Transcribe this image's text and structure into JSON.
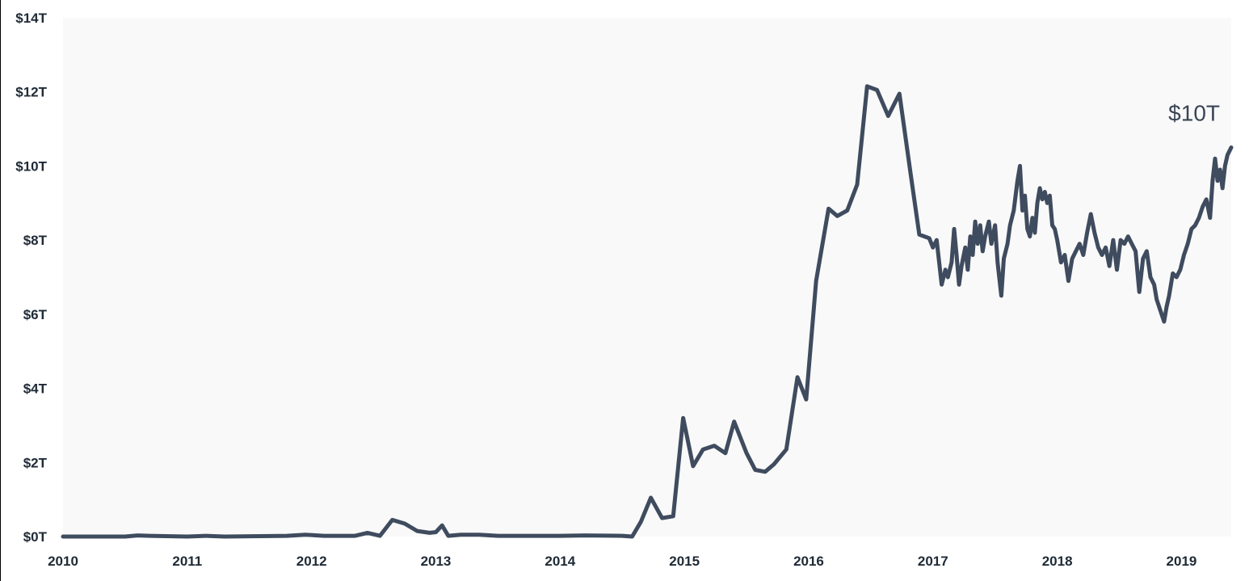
{
  "chart_data": {
    "type": "line",
    "title": "",
    "xlabel": "",
    "ylabel": "",
    "xlim": [
      2010.0,
      2019.4
    ],
    "ylim": [
      0,
      14
    ],
    "x_ticks": [
      2010,
      2011,
      2012,
      2013,
      2014,
      2015,
      2016,
      2017,
      2018,
      2019
    ],
    "x_tick_labels": [
      "2010",
      "2011",
      "2012",
      "2013",
      "2014",
      "2015",
      "2016",
      "2017",
      "2018",
      "2019"
    ],
    "y_ticks": [
      0,
      2,
      4,
      6,
      8,
      10,
      12,
      14
    ],
    "y_tick_labels": [
      "$0T",
      "$2T",
      "$4T",
      "$6T",
      "$8T",
      "$10T",
      "$12T",
      "$14T"
    ],
    "grid": false,
    "annotation": {
      "text": "$10T",
      "x": 2019.4,
      "y": 10.3
    },
    "line_color": "#3f4b5e",
    "plot_background": "#f9f9f9",
    "series": [
      {
        "values": [
          [
            2010.0,
            0.0
          ],
          [
            2010.5,
            0.0
          ],
          [
            2010.6,
            0.03
          ],
          [
            2010.7,
            0.02
          ],
          [
            2011.0,
            0.0
          ],
          [
            2011.15,
            0.02
          ],
          [
            2011.3,
            0.0
          ],
          [
            2011.8,
            0.02
          ],
          [
            2011.95,
            0.05
          ],
          [
            2012.1,
            0.02
          ],
          [
            2012.35,
            0.02
          ],
          [
            2012.45,
            0.1
          ],
          [
            2012.55,
            0.02
          ],
          [
            2012.65,
            0.45
          ],
          [
            2012.75,
            0.35
          ],
          [
            2012.85,
            0.15
          ],
          [
            2012.95,
            0.1
          ],
          [
            2013.0,
            0.12
          ],
          [
            2013.05,
            0.3
          ],
          [
            2013.1,
            0.02
          ],
          [
            2013.2,
            0.05
          ],
          [
            2013.35,
            0.05
          ],
          [
            2013.5,
            0.02
          ],
          [
            2014.0,
            0.02
          ],
          [
            2014.2,
            0.03
          ],
          [
            2014.5,
            0.02
          ],
          [
            2014.58,
            0.0
          ],
          [
            2014.65,
            0.4
          ],
          [
            2014.73,
            1.05
          ],
          [
            2014.82,
            0.5
          ],
          [
            2014.91,
            0.55
          ],
          [
            2014.99,
            3.2
          ],
          [
            2015.07,
            1.9
          ],
          [
            2015.15,
            2.35
          ],
          [
            2015.24,
            2.45
          ],
          [
            2015.33,
            2.25
          ],
          [
            2015.4,
            3.1
          ],
          [
            2015.5,
            2.25
          ],
          [
            2015.57,
            1.8
          ],
          [
            2015.65,
            1.75
          ],
          [
            2015.72,
            1.95
          ],
          [
            2015.82,
            2.35
          ],
          [
            2015.91,
            4.3
          ],
          [
            2015.98,
            3.7
          ],
          [
            2016.06,
            6.9
          ],
          [
            2016.16,
            8.85
          ],
          [
            2016.23,
            8.65
          ],
          [
            2016.31,
            8.8
          ],
          [
            2016.39,
            9.5
          ],
          [
            2016.47,
            12.15
          ],
          [
            2016.55,
            12.05
          ],
          [
            2016.64,
            11.35
          ],
          [
            2016.73,
            11.95
          ],
          [
            2016.82,
            9.8
          ],
          [
            2016.89,
            8.15
          ],
          [
            2016.97,
            8.05
          ],
          [
            2017.0,
            7.8
          ],
          [
            2017.03,
            8.0
          ],
          [
            2017.05,
            7.4
          ],
          [
            2017.07,
            6.8
          ],
          [
            2017.1,
            7.2
          ],
          [
            2017.12,
            7.0
          ],
          [
            2017.15,
            7.4
          ],
          [
            2017.17,
            8.3
          ],
          [
            2017.19,
            7.6
          ],
          [
            2017.21,
            6.8
          ],
          [
            2017.23,
            7.3
          ],
          [
            2017.26,
            7.8
          ],
          [
            2017.28,
            7.2
          ],
          [
            2017.3,
            8.1
          ],
          [
            2017.32,
            7.6
          ],
          [
            2017.34,
            8.5
          ],
          [
            2017.36,
            7.9
          ],
          [
            2017.38,
            8.4
          ],
          [
            2017.4,
            7.7
          ],
          [
            2017.42,
            8.1
          ],
          [
            2017.45,
            8.5
          ],
          [
            2017.47,
            7.9
          ],
          [
            2017.5,
            8.4
          ],
          [
            2017.52,
            7.4
          ],
          [
            2017.55,
            6.5
          ],
          [
            2017.57,
            7.5
          ],
          [
            2017.6,
            7.9
          ],
          [
            2017.62,
            8.4
          ],
          [
            2017.65,
            8.8
          ],
          [
            2017.68,
            9.6
          ],
          [
            2017.7,
            10.0
          ],
          [
            2017.72,
            8.8
          ],
          [
            2017.74,
            9.2
          ],
          [
            2017.76,
            8.3
          ],
          [
            2017.78,
            8.1
          ],
          [
            2017.8,
            8.6
          ],
          [
            2017.82,
            8.2
          ],
          [
            2017.84,
            9.0
          ],
          [
            2017.86,
            9.4
          ],
          [
            2017.88,
            9.1
          ],
          [
            2017.9,
            9.3
          ],
          [
            2017.92,
            9.0
          ],
          [
            2017.94,
            9.2
          ],
          [
            2017.96,
            8.4
          ],
          [
            2017.98,
            8.3
          ],
          [
            2018.0,
            8.0
          ],
          [
            2018.03,
            7.4
          ],
          [
            2018.06,
            7.6
          ],
          [
            2018.09,
            6.9
          ],
          [
            2018.12,
            7.5
          ],
          [
            2018.15,
            7.7
          ],
          [
            2018.18,
            7.9
          ],
          [
            2018.21,
            7.6
          ],
          [
            2018.24,
            8.2
          ],
          [
            2018.27,
            8.7
          ],
          [
            2018.3,
            8.2
          ],
          [
            2018.33,
            7.8
          ],
          [
            2018.36,
            7.6
          ],
          [
            2018.39,
            7.8
          ],
          [
            2018.42,
            7.3
          ],
          [
            2018.45,
            8.0
          ],
          [
            2018.48,
            7.2
          ],
          [
            2018.51,
            8.0
          ],
          [
            2018.54,
            7.9
          ],
          [
            2018.57,
            8.1
          ],
          [
            2018.6,
            7.9
          ],
          [
            2018.63,
            7.7
          ],
          [
            2018.66,
            6.6
          ],
          [
            2018.69,
            7.5
          ],
          [
            2018.72,
            7.7
          ],
          [
            2018.75,
            7.0
          ],
          [
            2018.78,
            6.8
          ],
          [
            2018.8,
            6.4
          ],
          [
            2018.83,
            6.1
          ],
          [
            2018.86,
            5.8
          ],
          [
            2018.88,
            6.2
          ],
          [
            2018.9,
            6.5
          ],
          [
            2018.93,
            7.1
          ],
          [
            2018.96,
            7.0
          ],
          [
            2018.99,
            7.2
          ],
          [
            2019.02,
            7.6
          ],
          [
            2019.05,
            7.9
          ],
          [
            2019.08,
            8.3
          ],
          [
            2019.11,
            8.4
          ],
          [
            2019.14,
            8.6
          ],
          [
            2019.17,
            8.9
          ],
          [
            2019.2,
            9.1
          ],
          [
            2019.23,
            8.6
          ],
          [
            2019.25,
            9.6
          ],
          [
            2019.27,
            10.2
          ],
          [
            2019.29,
            9.6
          ],
          [
            2019.31,
            9.9
          ],
          [
            2019.33,
            9.4
          ],
          [
            2019.35,
            10.0
          ],
          [
            2019.37,
            10.3
          ],
          [
            2019.4,
            10.5
          ]
        ]
      }
    ]
  }
}
